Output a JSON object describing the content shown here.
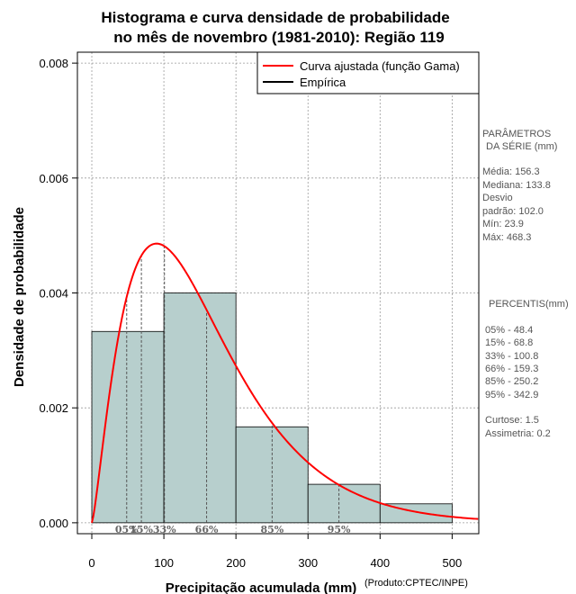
{
  "chart_data": {
    "type": "histogram",
    "title_line1": "Histograma e curva densidade de probabilidade",
    "title_line2": "no mês de novembro (1981-2010): Região 119",
    "xlabel": "Precipitação acumulada (mm)",
    "ylabel": "Densidade de probabilidade",
    "credit": "(Produto:CPTEC/INPE)",
    "xlim": [
      -20,
      537
    ],
    "ylim": [
      -0.00019,
      0.00819
    ],
    "x_ticks": [
      0,
      100,
      200,
      300,
      400,
      500
    ],
    "x_tick_labels": [
      "0",
      "100",
      "200",
      "300",
      "400",
      "500"
    ],
    "y_ticks": [
      0,
      0.002,
      0.004,
      0.006,
      0.008
    ],
    "y_tick_labels": [
      "0.000",
      "0.002",
      "0.004",
      "0.006",
      "0.008"
    ],
    "grid": true,
    "bins": [
      {
        "x0": 0,
        "x1": 100,
        "density": 0.00333
      },
      {
        "x0": 100,
        "x1": 200,
        "density": 0.004
      },
      {
        "x0": 200,
        "x1": 300,
        "density": 0.00167
      },
      {
        "x0": 300,
        "x1": 400,
        "density": 0.00067
      },
      {
        "x0": 400,
        "x1": 500,
        "density": 0.00033
      }
    ],
    "gamma_fit": {
      "label": "Curva ajustada (função Gama)",
      "shape": 2.35,
      "scale": 66.5,
      "color": "#ff0000"
    },
    "legend": {
      "position": "top-right",
      "entries": [
        {
          "label": "Curva ajustada (função Gama)",
          "color": "#ff0000"
        },
        {
          "label": "Empírica",
          "color": "#000000"
        }
      ]
    },
    "percentiles": [
      {
        "label": "05%",
        "value": 48.4
      },
      {
        "label": "15%",
        "value": 68.8
      },
      {
        "label": "33%",
        "value": 100.8
      },
      {
        "label": "66%",
        "value": 159.3
      },
      {
        "label": "85%",
        "value": 250.2
      },
      {
        "label": "95%",
        "value": 342.9
      }
    ],
    "bar_color": "#b7cfcd"
  },
  "side_panel": {
    "params_title_line1": "PARÂMETROS",
    "params_title_line2": "DA SÉRIE (mm)",
    "media": "Média:  156.3",
    "mediana": "Mediana:  133.8",
    "desvio_line1": "Desvio",
    "desvio_line2": "padrão:  102.0",
    "min": "Mín:  23.9",
    "max": "Máx:  468.3",
    "percentis_title": "PERCENTIS(mm)",
    "percentis_lines": [
      "05% -  48.4",
      "15% -  68.8",
      "33% -  100.8",
      "66% -  159.3",
      "85% -  250.2",
      "95% -  342.9"
    ],
    "curtose": "Curtose:  1.5",
    "assimetria": "Assimetria:  0.2"
  }
}
